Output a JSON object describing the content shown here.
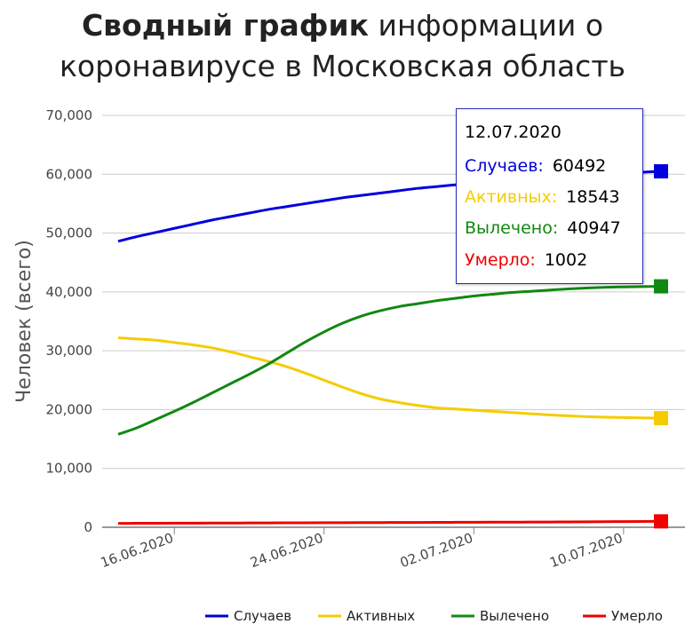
{
  "title": {
    "bold": "Сводный график",
    "rest": " информации о коронавирусе в Московская область"
  },
  "colors": {
    "cases": "#0000dd",
    "active": "#f5cc00",
    "recovered": "#118811",
    "deaths": "#ee0000",
    "grid": "#cccccc"
  },
  "tooltip": {
    "date": "12.07.2020",
    "rows": [
      {
        "label": "Случаев:",
        "value": "60492",
        "color": "#0000dd"
      },
      {
        "label": "Активных:",
        "value": "18543",
        "color": "#f5cc00"
      },
      {
        "label": "Вылечено:",
        "value": "40947",
        "color": "#118811"
      },
      {
        "label": "Умерло:",
        "value": "1002",
        "color": "#ee0000"
      }
    ]
  },
  "chart_data": {
    "type": "line",
    "ylabel": "Человек (всего)",
    "ylim": [
      0,
      70000
    ],
    "yticks": [
      "0",
      "10,000",
      "20,000",
      "30,000",
      "40,000",
      "50,000",
      "60,000",
      "70,000"
    ],
    "xticks": [
      "16.06.2020",
      "24.06.2020",
      "02.07.2020",
      "10.07.2020"
    ],
    "grid": true,
    "legend_position": "bottom-right",
    "x": [
      "13.06.2020",
      "14.06.2020",
      "15.06.2020",
      "16.06.2020",
      "17.06.2020",
      "18.06.2020",
      "19.06.2020",
      "20.06.2020",
      "21.06.2020",
      "22.06.2020",
      "23.06.2020",
      "24.06.2020",
      "25.06.2020",
      "26.06.2020",
      "27.06.2020",
      "28.06.2020",
      "29.06.2020",
      "30.06.2020",
      "01.07.2020",
      "02.07.2020",
      "03.07.2020",
      "04.07.2020",
      "05.07.2020",
      "06.07.2020",
      "07.07.2020",
      "08.07.2020",
      "09.07.2020",
      "10.07.2020",
      "11.07.2020",
      "12.07.2020"
    ],
    "series": [
      {
        "name": "Случаев",
        "color": "#0000dd",
        "values": [
          48600,
          49400,
          50100,
          50800,
          51500,
          52200,
          52800,
          53400,
          54000,
          54500,
          55000,
          55500,
          56000,
          56400,
          56800,
          57200,
          57600,
          57900,
          58200,
          58500,
          58800,
          59000,
          59300,
          59500,
          59700,
          59900,
          60100,
          60200,
          60350,
          60492
        ]
      },
      {
        "name": "Активных",
        "color": "#f5cc00",
        "values": [
          32200,
          32000,
          31800,
          31400,
          31000,
          30500,
          29800,
          29000,
          28200,
          27300,
          26200,
          25000,
          23800,
          22700,
          21800,
          21200,
          20700,
          20300,
          20100,
          19900,
          19700,
          19500,
          19300,
          19100,
          18950,
          18800,
          18700,
          18650,
          18600,
          18543
        ]
      },
      {
        "name": "Вылечено",
        "color": "#118811",
        "values": [
          15800,
          16900,
          18300,
          19700,
          21200,
          22800,
          24400,
          26000,
          27700,
          29600,
          31500,
          33200,
          34700,
          35900,
          36800,
          37500,
          38000,
          38500,
          38900,
          39300,
          39600,
          39900,
          40100,
          40300,
          40500,
          40650,
          40780,
          40850,
          40900,
          40947
        ]
      },
      {
        "name": "Умерло",
        "color": "#ee0000",
        "values": [
          660,
          670,
          680,
          690,
          700,
          710,
          720,
          730,
          740,
          750,
          760,
          770,
          780,
          790,
          800,
          810,
          820,
          830,
          840,
          850,
          860,
          870,
          880,
          890,
          910,
          930,
          950,
          970,
          990,
          1002
        ]
      }
    ]
  }
}
